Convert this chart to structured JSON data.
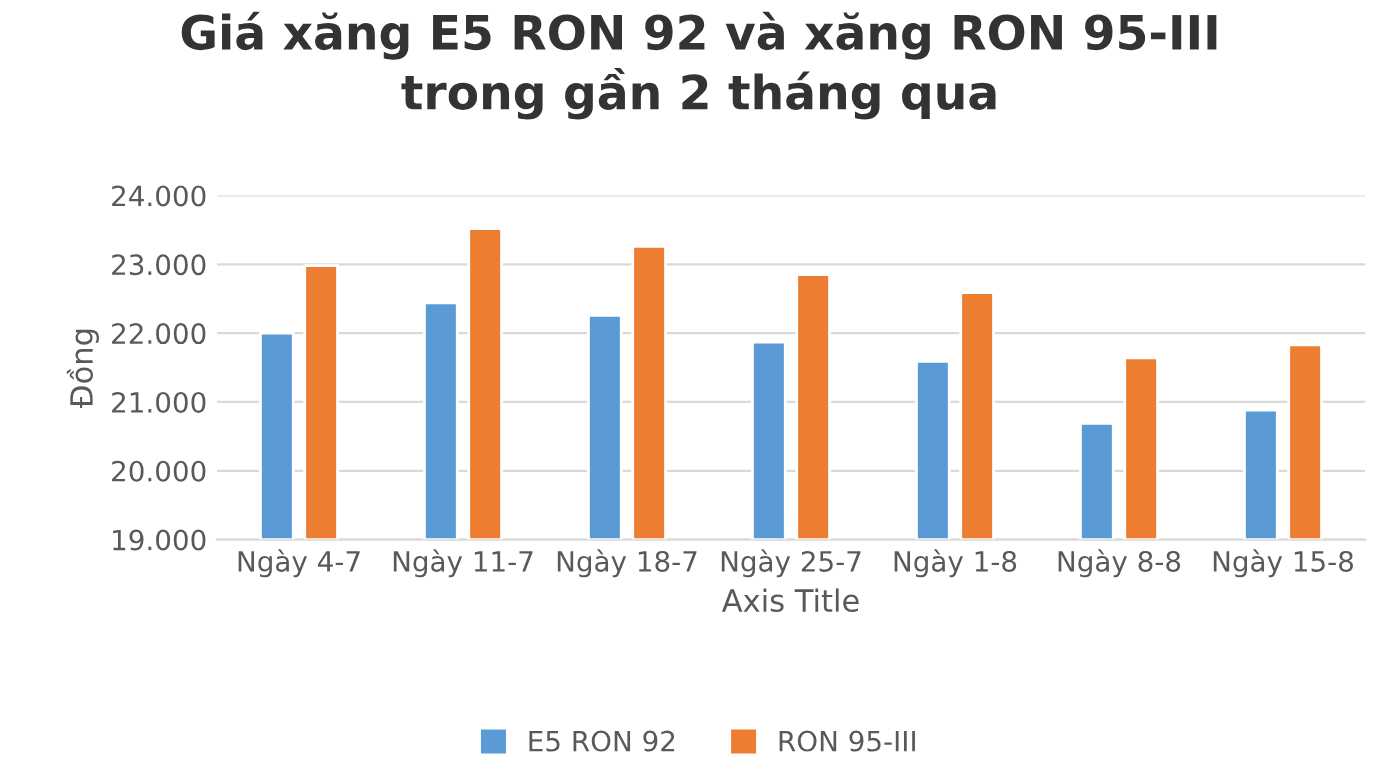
{
  "chart_data": {
    "type": "bar",
    "title": "Giá xăng E5 RON 92 và xăng RON 95-III\ntrong gần 2 tháng qua",
    "xlabel": "Axis Title",
    "ylabel": "Đồng",
    "categories": [
      "Ngày 4-7",
      "Ngày 11-7",
      "Ngày 18-7",
      "Ngày 25-7",
      "Ngày 1-8",
      "Ngày 8-8",
      "Ngày 15-8"
    ],
    "series": [
      {
        "name": "E5 RON 92",
        "color": "#5b9bd5",
        "values": [
          22000,
          22440,
          22260,
          21870,
          21590,
          20690,
          20880
        ]
      },
      {
        "name": "RON 95-III",
        "color": "#ed7d31",
        "values": [
          22980,
          23520,
          23260,
          22850,
          22590,
          21640,
          21830
        ]
      }
    ],
    "ylim": [
      19000,
      24000
    ],
    "yticks": [
      {
        "value": 19000,
        "label": "19.000"
      },
      {
        "value": 20000,
        "label": "20.000"
      },
      {
        "value": 21000,
        "label": "21.000"
      },
      {
        "value": 22000,
        "label": "22.000"
      },
      {
        "value": 23000,
        "label": "23.000"
      },
      {
        "value": 24000,
        "label": "24.000"
      }
    ],
    "grid": "y",
    "legend": "bottom"
  }
}
